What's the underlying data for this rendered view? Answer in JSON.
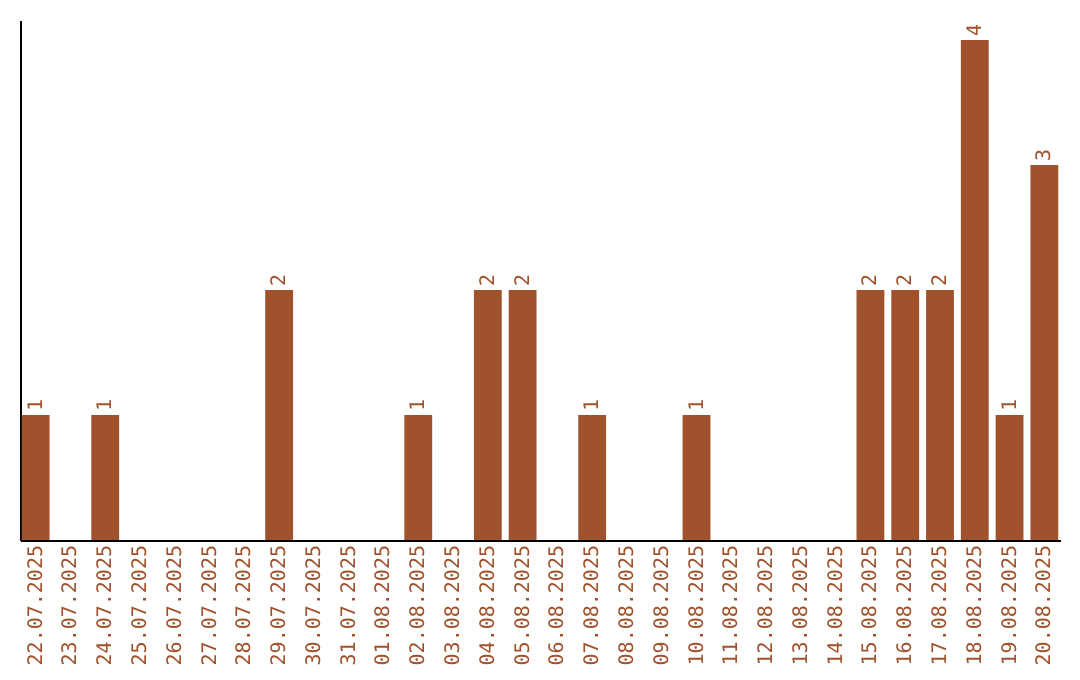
{
  "chart_data": {
    "type": "bar",
    "categories": [
      "22.07.2025",
      "23.07.2025",
      "24.07.2025",
      "25.07.2025",
      "26.07.2025",
      "27.07.2025",
      "28.07.2025",
      "29.07.2025",
      "30.07.2025",
      "31.07.2025",
      "01.08.2025",
      "02.08.2025",
      "03.08.2025",
      "04.08.2025",
      "05.08.2025",
      "06.08.2025",
      "07.08.2025",
      "08.08.2025",
      "09.08.2025",
      "10.08.2025",
      "11.08.2025",
      "12.08.2025",
      "13.08.2025",
      "14.08.2025",
      "15.08.2025",
      "16.08.2025",
      "17.08.2025",
      "18.08.2025",
      "19.08.2025",
      "20.08.2025"
    ],
    "values": [
      1,
      0,
      1,
      0,
      0,
      0,
      0,
      2,
      0,
      0,
      0,
      1,
      0,
      2,
      2,
      0,
      1,
      0,
      0,
      1,
      0,
      0,
      0,
      0,
      2,
      2,
      2,
      4,
      1,
      3
    ],
    "value_labels": [
      "1",
      null,
      "1",
      null,
      null,
      null,
      null,
      "2",
      null,
      null,
      null,
      "1",
      null,
      "2",
      "2",
      null,
      "1",
      null,
      null,
      "1",
      null,
      null,
      null,
      null,
      "2",
      "2",
      "2",
      "4",
      "1",
      "3"
    ],
    "color": "#a0522d",
    "ylim": [
      0,
      4.16
    ],
    "tick_labels": "x",
    "grid": false
  }
}
